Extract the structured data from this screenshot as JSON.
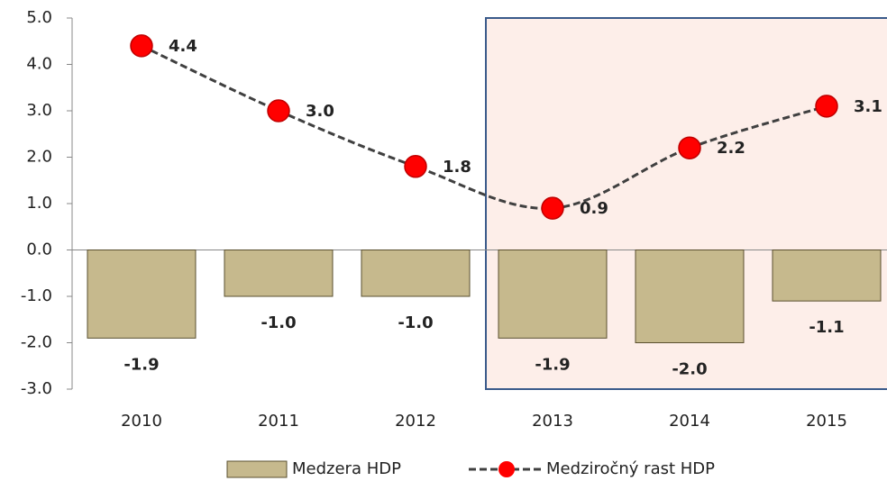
{
  "chart_data": {
    "type": "bar-line",
    "categories": [
      "2010",
      "2011",
      "2012",
      "2013",
      "2014",
      "2015"
    ],
    "series": [
      {
        "name": "Medzera HDP",
        "type": "bar",
        "color": "#c6b98d",
        "values": [
          -1.9,
          -1.0,
          -1.0,
          -1.9,
          -2.0,
          -1.1
        ],
        "value_labels": [
          "-1.9",
          "-1.0",
          "-1.0",
          "-1.9",
          "-2.0",
          "-1.1"
        ]
      },
      {
        "name": "Medziročný rast HDP",
        "type": "line",
        "color": "#ff0000",
        "values": [
          4.4,
          3.0,
          1.8,
          0.9,
          2.2,
          3.1
        ],
        "value_labels": [
          "4.4",
          "3.0",
          "1.8",
          "0.9",
          "2.2",
          "3.1"
        ]
      }
    ],
    "ylim": [
      -3,
      5
    ],
    "yticks": [
      {
        "value": -3,
        "label": "-3.0"
      },
      {
        "value": -2,
        "label": "-2.0"
      },
      {
        "value": -1,
        "label": "-1.0"
      },
      {
        "value": 0,
        "label": "0.0"
      },
      {
        "value": 1,
        "label": "1.0"
      },
      {
        "value": 2,
        "label": "2.0"
      },
      {
        "value": 3,
        "label": "3.0"
      },
      {
        "value": 4,
        "label": "4.0"
      },
      {
        "value": 5,
        "label": "5.0"
      }
    ],
    "legend": "bottom"
  }
}
